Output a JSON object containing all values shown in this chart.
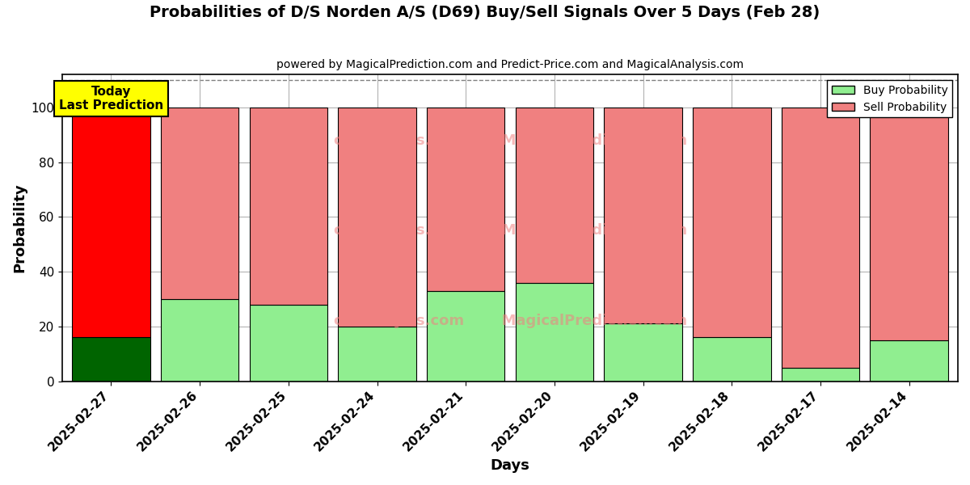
{
  "title": "Probabilities of D/S Norden A/S (D69) Buy/Sell Signals Over 5 Days (Feb 28)",
  "subtitle": "powered by MagicalPrediction.com and Predict-Price.com and MagicalAnalysis.com",
  "xlabel": "Days",
  "ylabel": "Probability",
  "categories": [
    "2025-02-27",
    "2025-02-26",
    "2025-02-25",
    "2025-02-24",
    "2025-02-21",
    "2025-02-20",
    "2025-02-19",
    "2025-02-18",
    "2025-02-17",
    "2025-02-14"
  ],
  "buy_values": [
    16,
    30,
    28,
    20,
    33,
    36,
    21,
    16,
    5,
    15
  ],
  "sell_values": [
    84,
    70,
    72,
    80,
    67,
    64,
    79,
    84,
    95,
    85
  ],
  "buy_color_today": "#006400",
  "sell_color_today": "#ff0000",
  "buy_color_other": "#90ee90",
  "sell_color_other": "#f08080",
  "bar_edge_color": "#000000",
  "ylim": [
    0,
    112
  ],
  "yticks": [
    0,
    20,
    40,
    60,
    80,
    100
  ],
  "dashed_line_y": 110,
  "legend_buy_label": "Buy Probability",
  "legend_sell_label": "Sell Probability",
  "today_label": "Today\nLast Prediction",
  "today_box_color": "#ffff00",
  "figsize": [
    12,
    6
  ],
  "dpi": 100,
  "background_color": "#ffffff",
  "grid_color": "#aaaaaa",
  "watermark_lines": [
    "calAnalysis.com    MagicalPrediction.com",
    "calAnalysis.com    MagicalPrediction.com"
  ],
  "watermark_color": "#f08080",
  "watermark_alpha": 0.55,
  "bar_width": 0.88
}
